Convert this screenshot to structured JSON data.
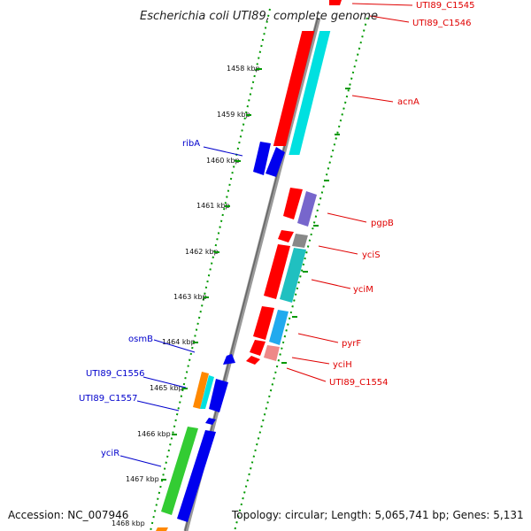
{
  "title": "Escherichia coli UTI89, complete genome",
  "accession": "Accession: NC_007946",
  "summary": "Topology: circular; Length: 5,065,741 bp; Genes: 5,131",
  "ticks": [
    "1458 kbp",
    "1459 kbp",
    "1460 kbp",
    "1461 kbp",
    "1462 kbp",
    "1463 kbp",
    "1464 kbp",
    "1465 kbp",
    "1466 kbp",
    "1467 kbp",
    "1468 kbp"
  ],
  "genes_right": [
    "UTI89_C1545",
    "UTI89_C1546",
    "acnA",
    "pgpB",
    "yciS",
    "yciM",
    "pyrF",
    "yciH",
    "UTI89_C1554"
  ],
  "genes_left": [
    "ribA",
    "osmB",
    "UTI89_C1556",
    "UTI89_C1557",
    "yciR"
  ],
  "colors": {
    "forward_cds": "#ff0000",
    "reverse_cds": "#0000ee",
    "cyan": "#00e0e0",
    "teal": "#20c0c0",
    "purple": "#7766cc",
    "gray": "#888888",
    "orange": "#ff8800",
    "green": "#33cc33",
    "skyblue": "#22aaee",
    "pink": "#ee8888",
    "label_right": "#e00000",
    "label_left": "#0000cc"
  }
}
